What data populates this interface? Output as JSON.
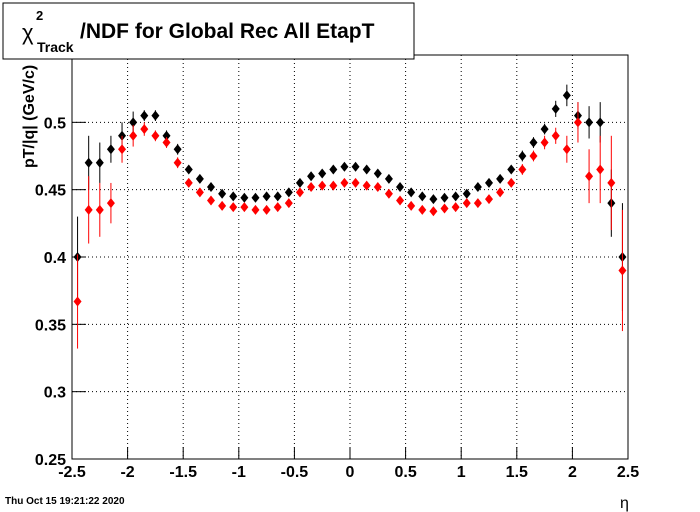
{
  "chart_data": {
    "type": "scatter",
    "title": {
      "symbol": "χ",
      "superscript": "2",
      "subscript": "Track",
      "text": "/NDF for Global Rec All EtapT"
    },
    "y_label": "pT/|q| (GeV/c)",
    "x_label": "η",
    "timestamp": "Thu Oct 15 19:21:22 2020",
    "xlim": [
      -2.5,
      2.5
    ],
    "xticks": [
      -2.5,
      -2,
      -1.5,
      -1,
      -0.5,
      0,
      0.5,
      1,
      1.5,
      2,
      2.5
    ],
    "ylim": [
      0.25,
      0.55
    ],
    "yticks": [
      0.25,
      0.3,
      0.35,
      0.4,
      0.45,
      0.5
    ],
    "grid": true,
    "x": [
      -2.45,
      -2.35,
      -2.25,
      -2.15,
      -2.05,
      -1.95,
      -1.85,
      -1.75,
      -1.65,
      -1.55,
      -1.45,
      -1.35,
      -1.25,
      -1.15,
      -1.05,
      -0.95,
      -0.85,
      -0.75,
      -0.65,
      -0.55,
      -0.45,
      -0.35,
      -0.25,
      -0.15,
      -0.05,
      0.05,
      0.15,
      0.25,
      0.35,
      0.45,
      0.55,
      0.65,
      0.75,
      0.85,
      0.95,
      1.05,
      1.15,
      1.25,
      1.35,
      1.45,
      1.55,
      1.65,
      1.75,
      1.85,
      1.95,
      2.05,
      2.15,
      2.25,
      2.35,
      2.45
    ],
    "series": [
      {
        "color": "#000000",
        "values": [
          0.4,
          0.47,
          0.47,
          0.48,
          0.49,
          0.5,
          0.505,
          0.505,
          0.49,
          0.48,
          0.465,
          0.458,
          0.452,
          0.447,
          0.445,
          0.444,
          0.444,
          0.445,
          0.445,
          0.448,
          0.455,
          0.46,
          0.462,
          0.465,
          0.467,
          0.467,
          0.465,
          0.462,
          0.458,
          0.452,
          0.448,
          0.445,
          0.443,
          0.444,
          0.445,
          0.447,
          0.452,
          0.455,
          0.458,
          0.465,
          0.475,
          0.485,
          0.495,
          0.51,
          0.52,
          0.505,
          0.5,
          0.5,
          0.44,
          0.4
        ],
        "errors": [
          0.03,
          0.02,
          0.015,
          0.01,
          0.01,
          0.008,
          0.004,
          0.004,
          0.004,
          0.004,
          0.003,
          0.003,
          0.003,
          0.003,
          0.003,
          0.003,
          0.003,
          0.003,
          0.003,
          0.003,
          0.003,
          0.003,
          0.003,
          0.003,
          0.003,
          0.003,
          0.003,
          0.003,
          0.003,
          0.003,
          0.003,
          0.003,
          0.003,
          0.003,
          0.003,
          0.003,
          0.003,
          0.003,
          0.003,
          0.003,
          0.004,
          0.004,
          0.004,
          0.006,
          0.008,
          0.01,
          0.012,
          0.015,
          0.025,
          0.04
        ]
      },
      {
        "color": "#ff0000",
        "values": [
          0.367,
          0.435,
          0.435,
          0.44,
          0.48,
          0.49,
          0.495,
          0.49,
          0.485,
          0.47,
          0.455,
          0.448,
          0.442,
          0.438,
          0.437,
          0.437,
          0.435,
          0.435,
          0.437,
          0.44,
          0.448,
          0.452,
          0.453,
          0.453,
          0.455,
          0.455,
          0.453,
          0.452,
          0.447,
          0.442,
          0.438,
          0.435,
          0.434,
          0.436,
          0.437,
          0.44,
          0.44,
          0.443,
          0.448,
          0.455,
          0.465,
          0.475,
          0.485,
          0.49,
          0.48,
          0.5,
          0.46,
          0.465,
          0.455,
          0.39
        ],
        "errors": [
          0.035,
          0.025,
          0.02,
          0.015,
          0.01,
          0.008,
          0.005,
          0.004,
          0.004,
          0.004,
          0.003,
          0.003,
          0.003,
          0.003,
          0.003,
          0.003,
          0.003,
          0.003,
          0.003,
          0.003,
          0.003,
          0.003,
          0.003,
          0.003,
          0.003,
          0.003,
          0.003,
          0.003,
          0.003,
          0.003,
          0.003,
          0.003,
          0.003,
          0.003,
          0.003,
          0.003,
          0.003,
          0.003,
          0.003,
          0.003,
          0.004,
          0.004,
          0.005,
          0.006,
          0.01,
          0.015,
          0.02,
          0.025,
          0.035,
          0.045
        ]
      }
    ]
  }
}
